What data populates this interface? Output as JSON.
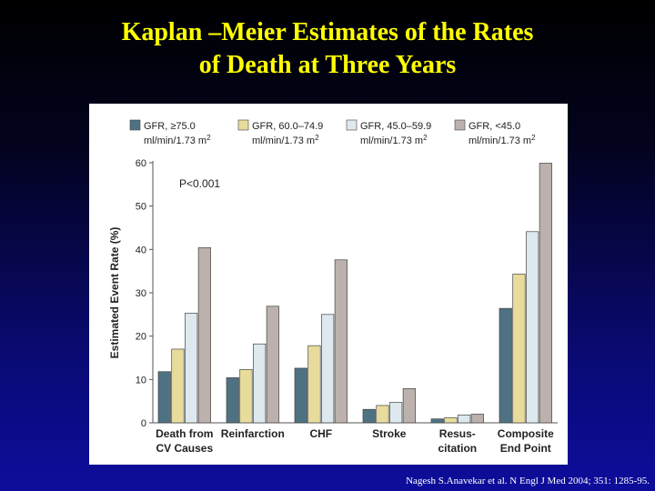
{
  "slide": {
    "title_line1": "Kaplan –Meier Estimates of the Rates",
    "title_line2": "of Death at Three Years",
    "citation": "Nagesh S.Anavekar et al. N Engl J Med 2004; 351: 1285-95."
  },
  "colors": {
    "title": "#ffff00",
    "series": [
      "#4f7283",
      "#e8dc9c",
      "#dde9ef",
      "#bcb1ad"
    ]
  },
  "chart_data": {
    "type": "bar",
    "title": "",
    "xlabel": "",
    "ylabel": "Estimated Event Rate (%)",
    "ylim": [
      0,
      60
    ],
    "yticks": [
      0,
      10,
      20,
      30,
      40,
      50,
      60
    ],
    "annotation": "P<0.001",
    "legend_position": "top",
    "grid": false,
    "categories": [
      [
        "Death from",
        "CV Causes"
      ],
      [
        "Reinfarction"
      ],
      [
        "CHF"
      ],
      [
        "Stroke"
      ],
      [
        "Resus-",
        "citation"
      ],
      [
        "Composite",
        "End Point"
      ]
    ],
    "series": [
      {
        "name": "GFR, ≥75.0",
        "unit": "ml/min/1.73 m",
        "values": [
          11.8,
          10.4,
          12.6,
          3.1,
          0.9,
          26.4
        ]
      },
      {
        "name": "GFR, 60.0–74.9",
        "unit": "ml/min/1.73 m",
        "values": [
          17.0,
          12.3,
          17.8,
          4.0,
          1.2,
          34.3
        ]
      },
      {
        "name": "GFR, 45.0–59.9",
        "unit": "ml/min/1.73 m",
        "values": [
          25.3,
          18.2,
          25.0,
          4.7,
          1.8,
          44.1
        ]
      },
      {
        "name": "GFR, <45.0",
        "unit": "ml/min/1.73 m",
        "values": [
          40.4,
          26.9,
          37.6,
          7.9,
          2.0,
          59.9
        ]
      }
    ],
    "unit_superscript": "2"
  }
}
